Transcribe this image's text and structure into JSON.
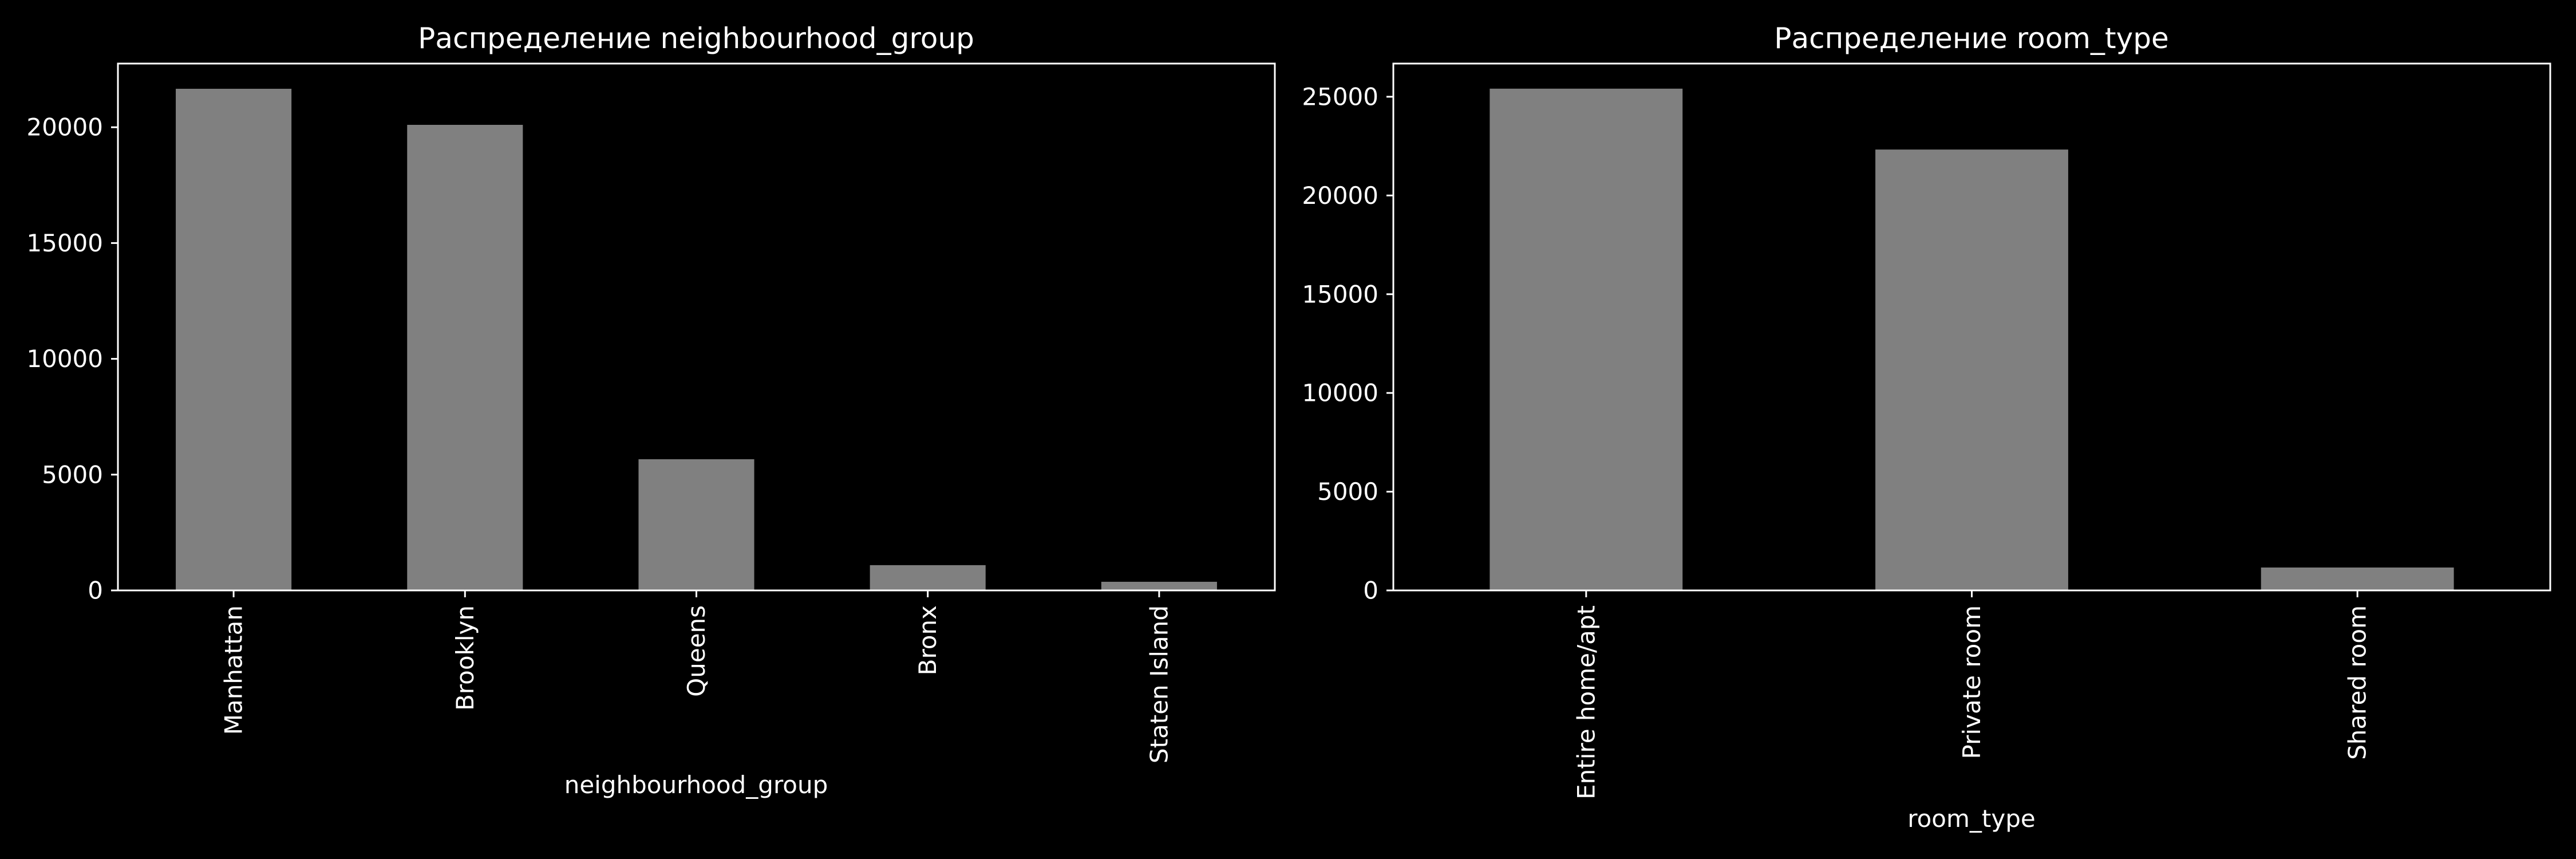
{
  "colors": {
    "background": "#000000",
    "bar": "#808080",
    "axes": "#ffffff",
    "text": "#ffffff"
  },
  "chart_data": [
    {
      "type": "bar",
      "title": "Распределение neighbourhood_group",
      "xlabel": "neighbourhood_group",
      "ylabel": "",
      "categories": [
        "Manhattan",
        "Brooklyn",
        "Queens",
        "Bronx",
        "Staten Island"
      ],
      "values": [
        21661,
        20104,
        5666,
        1091,
        373
      ],
      "ylim": [
        0,
        22750
      ],
      "yticks": [
        0,
        5000,
        10000,
        15000,
        20000
      ],
      "ytick_labels": [
        "0",
        "5000",
        "10000",
        "15000",
        "20000"
      ],
      "grid": false,
      "legend": "none"
    },
    {
      "type": "bar",
      "title": "Распределение room_type",
      "xlabel": "room_type",
      "ylabel": "",
      "categories": [
        "Entire home/apt",
        "Private room",
        "Shared room"
      ],
      "values": [
        25409,
        22326,
        1160
      ],
      "ylim": [
        0,
        26680
      ],
      "yticks": [
        0,
        5000,
        10000,
        15000,
        20000,
        25000
      ],
      "ytick_labels": [
        "0",
        "5000",
        "10000",
        "15000",
        "20000",
        "25000"
      ],
      "grid": false,
      "legend": "none"
    }
  ]
}
